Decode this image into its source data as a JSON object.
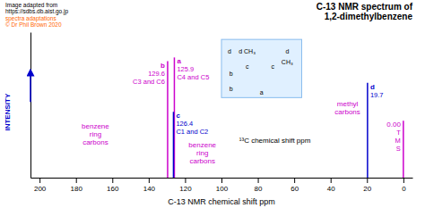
{
  "chart_data": {
    "type": "stem",
    "title": "C-13 NMR spectrum of\n1,2-dimethylbenzene",
    "x_label": "C-13 NMR chemical shift ppm",
    "y_label": "INTENSITY",
    "xlim": [
      205,
      -5
    ],
    "ylim": [
      0,
      1.15
    ],
    "xticks": [
      200,
      180,
      160,
      140,
      120,
      100,
      80,
      60,
      40,
      20,
      0
    ],
    "tick_labels": "x",
    "series": [
      {
        "x": [
          129.6,
          125.9,
          126.4,
          19.7,
          0.0
        ],
        "values": [
          0.92,
          0.95,
          0.52,
          0.75,
          0.45
        ],
        "colors": [
          "#CC00CC",
          "#CC00CC",
          "#0000CC",
          "#0000CC",
          "#CC00CC"
        ],
        "labels": [
          [
            "b",
            "129.6",
            "C3 and C6"
          ],
          [
            "a",
            "125.9",
            "C4 and C5"
          ],
          [
            "c",
            "126.4",
            "C1 and C2"
          ],
          [
            "d",
            "19.7"
          ],
          [
            "0.00",
            "T",
            "M",
            "S"
          ]
        ]
      }
    ],
    "annotations": [
      {
        "text": "benzene\nring\ncarbons",
        "color": "#CC00CC"
      },
      {
        "text": "benzene\nring\ncarbons",
        "color": "#CC00CC"
      },
      {
        "text": "methyl\ncarbons",
        "color": "#CC00CC"
      }
    ],
    "chem_shift_label": "¹³C chemical shift ppm",
    "credits": [
      {
        "text": "Image adapted from\nhttps://sdbs.db.aist.go.jp",
        "color": "#000000"
      },
      {
        "text": "spectra adaptations\n© Dr Phil Brown 2020",
        "color": "#FF6600"
      }
    ],
    "structure_labels": [
      "d CH₃",
      "d",
      "CH₃",
      "d",
      "b",
      "b",
      "a",
      "c",
      "c"
    ]
  }
}
